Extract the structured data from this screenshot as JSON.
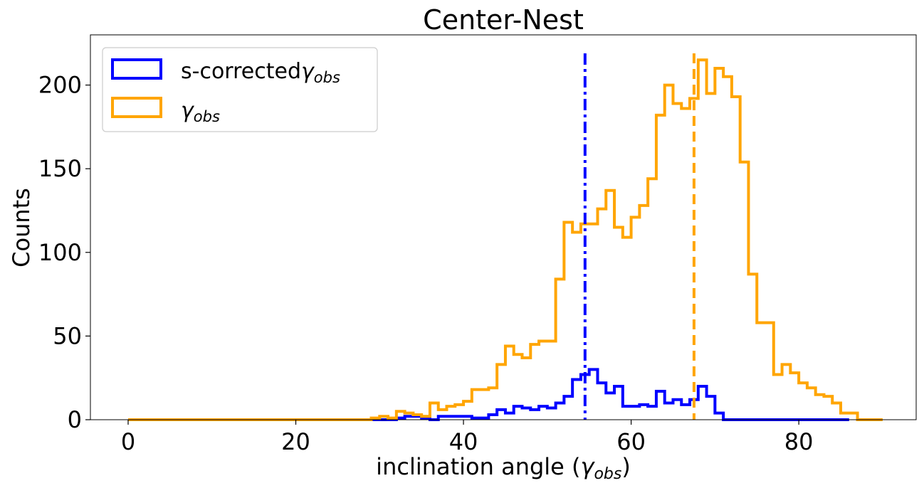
{
  "chart_data": {
    "type": "histogram-step",
    "title": "Center-Nest",
    "xlabel": "inclination angle (",
    "xlabel_symbol": "γ",
    "xlabel_sub": "obs",
    "xlabel_end": ")",
    "ylabel": "Counts",
    "xlim": [
      -4.5,
      94
    ],
    "ylim": [
      0,
      230
    ],
    "xticks": [
      0,
      20,
      40,
      60,
      80
    ],
    "yticks": [
      0,
      50,
      100,
      150,
      200
    ],
    "bin_width": 1,
    "legend": {
      "location": "upper-left",
      "entries": [
        {
          "text": "s-corrected",
          "symbol": "γ",
          "sub": "obs"
        },
        {
          "text": "",
          "symbol": "γ",
          "sub": "obs"
        }
      ]
    },
    "series": [
      {
        "key": "s_corrected",
        "color": "#0000ff",
        "start": 29,
        "end": 86,
        "counts": [
          0,
          0,
          0,
          1,
          2,
          2,
          1,
          0,
          2,
          2,
          2,
          2,
          1,
          1,
          3,
          6,
          4,
          8,
          7,
          6,
          8,
          7,
          10,
          14,
          24,
          27,
          30,
          22,
          16,
          20,
          8,
          8,
          9,
          8,
          17,
          10,
          12,
          9,
          12,
          20,
          14,
          4,
          0,
          0,
          0,
          0,
          0,
          0,
          0,
          0,
          0,
          0,
          0,
          0,
          0,
          0,
          0
        ]
      },
      {
        "key": "gamma_obs",
        "color": "#ffa500",
        "start": 0,
        "end": 90,
        "counts": [
          0,
          0,
          0,
          0,
          0,
          0,
          0,
          0,
          0,
          0,
          0,
          0,
          0,
          0,
          0,
          0,
          0,
          0,
          0,
          0,
          0,
          0,
          0,
          0,
          0,
          0,
          0,
          0,
          0,
          1,
          2,
          1,
          5,
          4,
          3,
          2,
          10,
          6,
          8,
          9,
          11,
          18,
          18,
          19,
          33,
          44,
          39,
          37,
          45,
          47,
          47,
          84,
          118,
          112,
          117,
          117,
          126,
          137,
          115,
          109,
          121,
          128,
          144,
          182,
          200,
          189,
          186,
          192,
          215,
          195,
          210,
          205,
          193,
          154,
          87,
          58,
          58,
          27,
          33,
          28,
          22,
          19,
          15,
          14,
          10,
          4,
          4,
          0,
          0,
          0
        ]
      }
    ],
    "vlines": [
      {
        "x": 54.5,
        "color": "#0000ff",
        "style": "dashdot"
      },
      {
        "x": 67.5,
        "color": "#ffa500",
        "style": "dashed"
      }
    ]
  }
}
